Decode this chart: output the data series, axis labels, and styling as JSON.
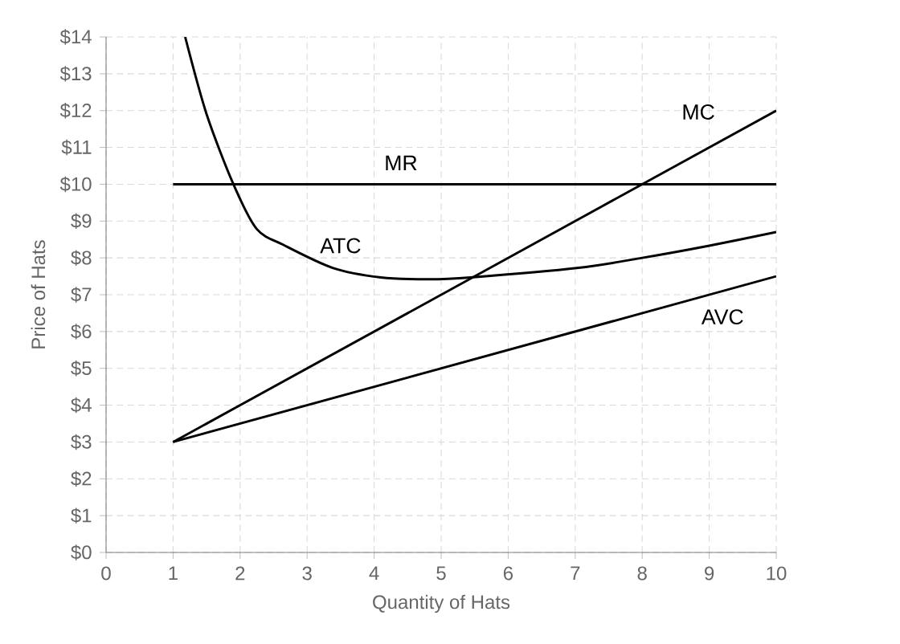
{
  "chart_data": {
    "type": "line",
    "xlabel": "Quantity of Hats",
    "ylabel": "Price of Hats",
    "xlim": [
      0,
      10
    ],
    "xticks": [
      0,
      1,
      2,
      3,
      4,
      5,
      6,
      7,
      8,
      9,
      10
    ],
    "ylim": [
      0,
      14
    ],
    "yticks": [
      {
        "value": 0,
        "label": "$0"
      },
      {
        "value": 1,
        "label": "$1"
      },
      {
        "value": 2,
        "label": "$2"
      },
      {
        "value": 3,
        "label": "$3"
      },
      {
        "value": 4,
        "label": "$4"
      },
      {
        "value": 5,
        "label": "$5"
      },
      {
        "value": 6,
        "label": "$6"
      },
      {
        "value": 7,
        "label": "$7"
      },
      {
        "value": 8,
        "label": "$8"
      },
      {
        "value": 9,
        "label": "$9"
      },
      {
        "value": 10,
        "label": "$10"
      },
      {
        "value": 11,
        "label": "$11"
      },
      {
        "value": 12,
        "label": "$12"
      },
      {
        "value": 13,
        "label": "$13"
      },
      {
        "value": 14,
        "label": "$14"
      }
    ],
    "grid": true,
    "marker": "none",
    "line_style": "solid",
    "series": [
      {
        "name": "MC",
        "color": "#000000",
        "x": [
          1,
          10
        ],
        "values": [
          3,
          12
        ]
      },
      {
        "name": "MR",
        "color": "#000000",
        "x": [
          1,
          10
        ],
        "values": [
          10,
          10
        ]
      },
      {
        "name": "ATC",
        "color": "#000000",
        "x": [
          1.18,
          1.5,
          1.9,
          2.25,
          2.66,
          3.38,
          4.1,
          4.82,
          5.44,
          7.05,
          8,
          9,
          10
        ],
        "values": [
          14,
          11.9,
          10,
          8.78,
          8.34,
          7.73,
          7.47,
          7.42,
          7.47,
          7.73,
          8.0,
          8.33,
          8.7
        ]
      },
      {
        "name": "AVC",
        "color": "#000000",
        "x": [
          1,
          10
        ],
        "values": [
          3,
          7.5
        ]
      }
    ]
  }
}
